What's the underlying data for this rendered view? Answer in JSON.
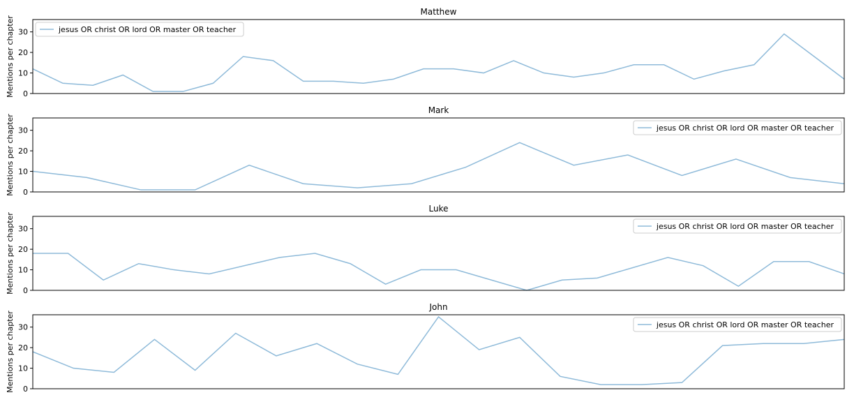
{
  "chart_data": [
    {
      "type": "line",
      "title": "Matthew",
      "ylabel": "Mentions per chapter",
      "legend": "upper left",
      "ylim": [
        0,
        36
      ],
      "yticks": [
        0,
        10,
        20,
        30
      ],
      "series": [
        {
          "name": "jesus OR christ OR lord OR master OR teacher",
          "color": "#8ebad9",
          "values": [
            12,
            5,
            4,
            9,
            1,
            1,
            5,
            18,
            16,
            6,
            6,
            5,
            7,
            12,
            12,
            10,
            16,
            10,
            8,
            10,
            14,
            14,
            7,
            11,
            14,
            29,
            18,
            7
          ]
        }
      ]
    },
    {
      "type": "line",
      "title": "Mark",
      "ylabel": "Mentions per chapter",
      "legend": "upper right",
      "ylim": [
        0,
        36
      ],
      "yticks": [
        0,
        10,
        20,
        30
      ],
      "series": [
        {
          "name": "jesus OR christ OR lord OR master OR teacher",
          "color": "#8ebad9",
          "values": [
            10,
            7,
            1,
            1,
            13,
            4,
            2,
            4,
            12,
            24,
            13,
            18,
            8,
            16,
            7,
            4
          ]
        }
      ]
    },
    {
      "type": "line",
      "title": "Luke",
      "ylabel": "Mentions per chapter",
      "legend": "upper right",
      "ylim": [
        0,
        36
      ],
      "yticks": [
        0,
        10,
        20,
        30
      ],
      "series": [
        {
          "name": "jesus OR christ OR lord OR master OR teacher",
          "color": "#8ebad9",
          "values": [
            18,
            18,
            5,
            13,
            10,
            8,
            12,
            16,
            18,
            13,
            3,
            10,
            10,
            5,
            0,
            5,
            6,
            11,
            16,
            12,
            2,
            14,
            14,
            8
          ]
        }
      ]
    },
    {
      "type": "line",
      "title": "John",
      "ylabel": "Mentions per chapter",
      "legend": "upper right",
      "ylim": [
        0,
        36
      ],
      "yticks": [
        0,
        10,
        20,
        30
      ],
      "series": [
        {
          "name": "jesus OR christ OR lord OR master OR teacher",
          "color": "#8ebad9",
          "values": [
            18,
            10,
            8,
            24,
            9,
            27,
            16,
            22,
            12,
            7,
            35,
            19,
            25,
            6,
            2,
            2,
            3,
            21,
            22,
            22,
            24
          ]
        }
      ]
    }
  ]
}
